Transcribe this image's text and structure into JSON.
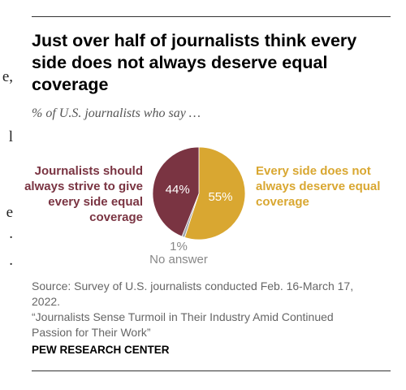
{
  "page_edge_fragments": [
    "",
    "e,",
    "l",
    "",
    "e",
    ".",
    "."
  ],
  "header": {
    "title": "Just over half of journalists think every side does not always deserve equal coverage",
    "subtitle": "% of U.S. journalists who say …"
  },
  "chart_data": {
    "type": "pie",
    "title": "Just over half of journalists think every side does not always deserve equal coverage",
    "subtitle": "% of U.S. journalists who say …",
    "slices": [
      {
        "label": "Every side does not always deserve equal coverage",
        "value": 55,
        "value_label": "55%",
        "color": "#D9A731"
      },
      {
        "label": "No answer",
        "value": 1,
        "value_label": "1%",
        "color": "#A0A6B0"
      },
      {
        "label": "Journalists should always strive to give every side equal coverage",
        "value": 44,
        "value_label": "44%",
        "color": "#7A3442"
      }
    ]
  },
  "labels": {
    "left": "Journalists should always strive to give every side equal coverage",
    "right": "Every side does not always deserve equal coverage",
    "na_value": "1%",
    "na_text": "No answer"
  },
  "footer": {
    "source": "Source: Survey of U.S. journalists conducted Feb. 16-March 17, 2022.",
    "report": "“Journalists Sense Turmoil in Their Industry Amid Continued Passion for Their Work”",
    "org": "PEW RESEARCH CENTER"
  }
}
